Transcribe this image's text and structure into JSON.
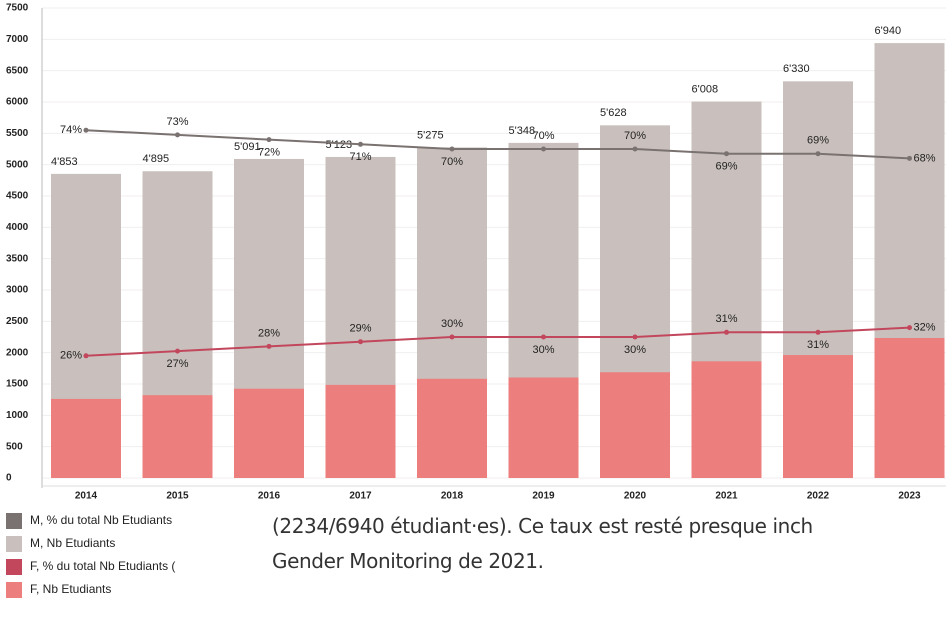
{
  "chart_data": {
    "type": "combo",
    "categories": [
      "2014",
      "2015",
      "2016",
      "2017",
      "2018",
      "2019",
      "2020",
      "2021",
      "2022",
      "2023"
    ],
    "ylim": [
      0,
      7500
    ],
    "yticks": [
      0,
      500,
      1000,
      1500,
      2000,
      2500,
      3000,
      3500,
      4000,
      4500,
      5000,
      5500,
      6000,
      6500,
      7000,
      7500
    ],
    "y2lim": [
      0,
      100
    ],
    "grid": true,
    "legend": "bottom-left",
    "series": [
      {
        "name": "M, % du total Nb Etudiants",
        "type": "line",
        "axis": "y2",
        "color": "#7a7270",
        "values": [
          74,
          73,
          72,
          71,
          70,
          70,
          70,
          69,
          69,
          68
        ],
        "value_labels": [
          "74%",
          "73%",
          "72%",
          "71%",
          "70%",
          "70%",
          "70%",
          "69%",
          "69%",
          "68%"
        ]
      },
      {
        "name": "M, Nb Etudiants",
        "type": "bar",
        "color": "#c9c0bd",
        "values": [
          4853,
          4895,
          5091,
          5123,
          5275,
          5348,
          5628,
          6008,
          6330,
          6940
        ],
        "value_labels": [
          "4'853",
          "4'895",
          "5'091",
          "5'123",
          "5'275",
          "5'348",
          "5'628",
          "6'008",
          "6'330",
          "6'940"
        ]
      },
      {
        "name": "F, % du total Nb Etudiants (",
        "type": "line",
        "axis": "y2",
        "color": "#c2475c",
        "values": [
          26,
          27,
          28,
          29,
          30,
          30,
          30,
          31,
          31,
          32
        ],
        "value_labels": [
          "26%",
          "27%",
          "28%",
          "29%",
          "30%",
          "30%",
          "30%",
          "31%",
          "31%",
          "32%"
        ]
      },
      {
        "name": "F, Nb Etudiants",
        "type": "bar",
        "color": "#ec7f7d",
        "values": [
          1262,
          1322,
          1425,
          1486,
          1583,
          1604,
          1688,
          1862,
          1962,
          2234
        ]
      }
    ]
  },
  "text": {
    "lines": [
      "(2234/6940 étudiant·es).  Ce taux est resté presque inch",
      "Gender Monitoring de 2021."
    ]
  }
}
